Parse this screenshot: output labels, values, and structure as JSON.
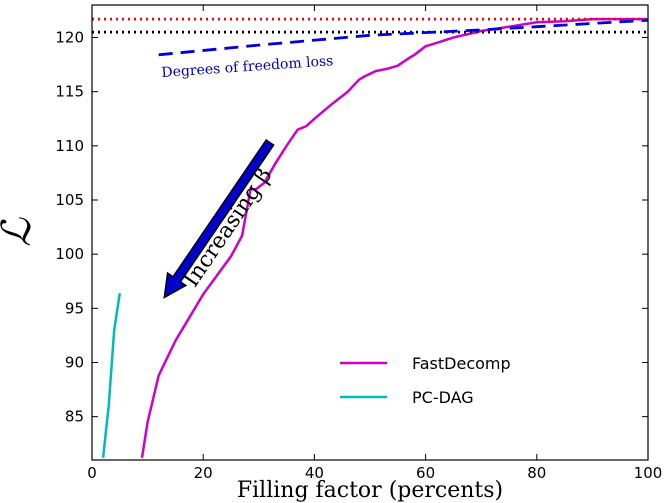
{
  "chart_data": {
    "type": "line",
    "title": "",
    "xlabel": "Filling factor (percents)",
    "ylabel": "ℒ",
    "xlim": [
      0,
      100
    ],
    "ylim": [
      81,
      123
    ],
    "xticks": [
      0,
      20,
      40,
      60,
      80,
      100
    ],
    "yticks": [
      85,
      90,
      95,
      100,
      105,
      110,
      115,
      120
    ],
    "grid": false,
    "legend_position": "bottom-right",
    "series": [
      {
        "name": "FastDecomp",
        "color": "#cc00cc",
        "style": "solid",
        "points": [
          [
            9,
            81.2
          ],
          [
            10,
            84.5
          ],
          [
            12,
            88.8
          ],
          [
            15,
            92.0
          ],
          [
            20,
            96.3
          ],
          [
            25,
            99.8
          ],
          [
            27,
            101.7
          ],
          [
            28.5,
            106.0
          ],
          [
            29.5,
            106.0
          ],
          [
            31,
            106.6
          ],
          [
            33,
            108.4
          ],
          [
            35,
            110.0
          ],
          [
            37,
            111.5
          ],
          [
            38.5,
            111.8
          ],
          [
            40,
            112.5
          ],
          [
            43,
            113.8
          ],
          [
            46,
            115.0
          ],
          [
            48,
            116.1
          ],
          [
            49,
            116.4
          ],
          [
            51,
            116.9
          ],
          [
            53,
            117.1
          ],
          [
            55,
            117.4
          ],
          [
            57,
            118.1
          ],
          [
            58,
            118.4
          ],
          [
            60,
            119.2
          ],
          [
            62,
            119.5
          ],
          [
            65,
            120.0
          ],
          [
            70,
            120.6
          ],
          [
            75,
            121.0
          ],
          [
            80,
            121.4
          ],
          [
            85,
            121.5
          ],
          [
            90,
            121.7
          ],
          [
            95,
            121.7
          ],
          [
            100,
            121.7
          ]
        ]
      },
      {
        "name": "PC-DAG",
        "color": "#00bbbb",
        "style": "solid",
        "points": [
          [
            2,
            81.2
          ],
          [
            3,
            86.0
          ],
          [
            4,
            93.0
          ],
          [
            5,
            96.4
          ]
        ]
      },
      {
        "color": "#ff0000",
        "style": "dotted",
        "points": [
          [
            0,
            121.7
          ],
          [
            100,
            121.7
          ]
        ]
      },
      {
        "color": "#000000",
        "style": "dotted",
        "points": [
          [
            0,
            120.5
          ],
          [
            100,
            120.5
          ]
        ]
      },
      {
        "color": "#0000dd",
        "style": "dashed",
        "points": [
          [
            12,
            118.4
          ],
          [
            30,
            119.3
          ],
          [
            50,
            120.2
          ],
          [
            70,
            120.7
          ],
          [
            80,
            121.0
          ],
          [
            100,
            121.6
          ]
        ]
      }
    ],
    "annotations": [
      {
        "text": "Degrees of freedom loss",
        "color": "#0000cc",
        "x": 28,
        "y": 116.9
      },
      {
        "text": "Increasing β",
        "x_start": 32,
        "y_start": 110.3,
        "x_end": 13,
        "y_end": 96.0
      }
    ]
  }
}
